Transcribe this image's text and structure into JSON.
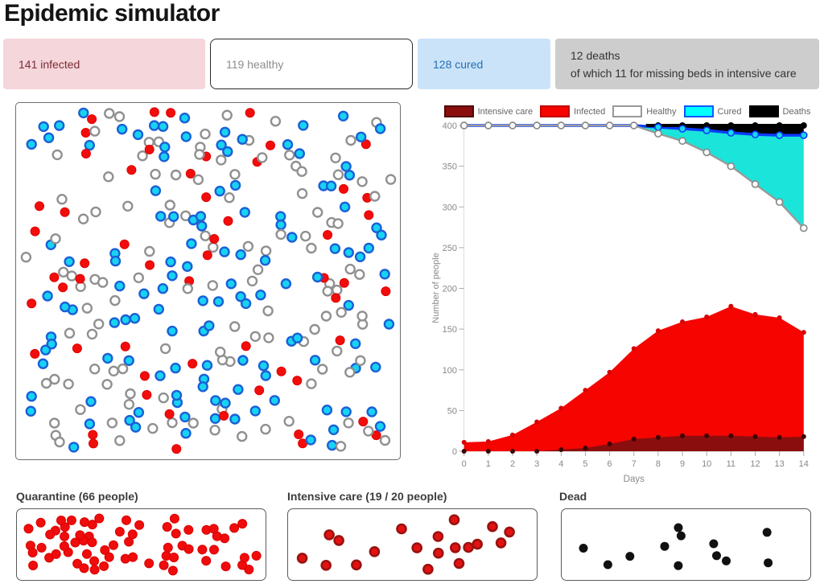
{
  "title": "Epidemic simulator",
  "stats": {
    "infected": {
      "label": "141 infected"
    },
    "healthy": {
      "label": "119 healthy"
    },
    "cured": {
      "label": "128 cured"
    },
    "deaths": {
      "line1": "12 deaths",
      "line2": "of which 11 for missing beds in intensive care"
    }
  },
  "simulation": {
    "total_people": 400,
    "main_panel_counts": {
      "infected": 56,
      "healthy": 119,
      "cured": 128
    }
  },
  "panels": {
    "quarantine": {
      "title": "Quarantine (66 people)",
      "count": 66
    },
    "intensive_care": {
      "title": "Intensive care (19 / 20 people)",
      "count": 19,
      "capacity": 20
    },
    "dead": {
      "title": "Dead",
      "count": 12
    }
  },
  "colors": {
    "infected_red": "#f20d0d",
    "infected_area": "#f50400",
    "intensive_area": "#8b0e0e",
    "intensive_dot_ring": "#99120f",
    "cured_cyan_area": "#1be4da",
    "cured_dot_fill": "#17d3f2",
    "cured_dot_ring": "#1b5fd6",
    "cured_line_blue": "#0a3cff",
    "healthy_line_gray": "#999999",
    "healthy_dot_ring": "#909090",
    "deaths_black": "#000000",
    "dead_dot": "#111111",
    "axis_text": "#888888",
    "legend_text": "#666666"
  },
  "chart_data": {
    "type": "area",
    "title": "",
    "xlabel": "Days",
    "ylabel": "Number of people",
    "x": [
      0,
      1,
      2,
      3,
      4,
      5,
      6,
      7,
      8,
      9,
      10,
      11,
      12,
      13,
      14
    ],
    "xticks": [
      0,
      1,
      2,
      3,
      4,
      5,
      6,
      7,
      8,
      9,
      10,
      11,
      12,
      13,
      14
    ],
    "yticks": [
      0,
      50,
      100,
      150,
      200,
      250,
      300,
      350,
      400
    ],
    "ylim": [
      0,
      400
    ],
    "total_population": 400,
    "grid": false,
    "legend_position": "top",
    "series": [
      {
        "name": "Intensive care",
        "values": [
          0,
          0,
          0,
          0,
          2,
          4,
          9,
          15,
          17,
          19,
          19,
          19,
          18,
          17,
          18
        ]
      },
      {
        "name": "Infected",
        "values": [
          11,
          12,
          20,
          36,
          53,
          75,
          97,
          126,
          148,
          159,
          165,
          178,
          168,
          164,
          146
        ]
      },
      {
        "name": "Cured",
        "values": [
          0,
          0,
          0,
          0,
          0,
          0,
          0,
          0,
          8,
          15,
          27,
          41,
          61,
          82,
          114
        ]
      },
      {
        "name": "Deaths",
        "values": [
          0,
          0,
          0,
          0,
          0,
          0,
          0,
          0,
          2,
          4,
          6,
          9,
          11,
          12,
          12
        ]
      }
    ],
    "legend": [
      {
        "label": "Intensive care",
        "fill": "#8b0e0e",
        "border": "#500505"
      },
      {
        "label": "Infected",
        "fill": "#f50400",
        "border": "#c00300"
      },
      {
        "label": "Healthy",
        "fill": "#ffffff",
        "border": "#999999"
      },
      {
        "label": "Cured",
        "fill": "#00ffff",
        "border": "#0a58ff"
      },
      {
        "label": "Deaths",
        "fill": "#000000",
        "border": "#000000"
      }
    ]
  }
}
